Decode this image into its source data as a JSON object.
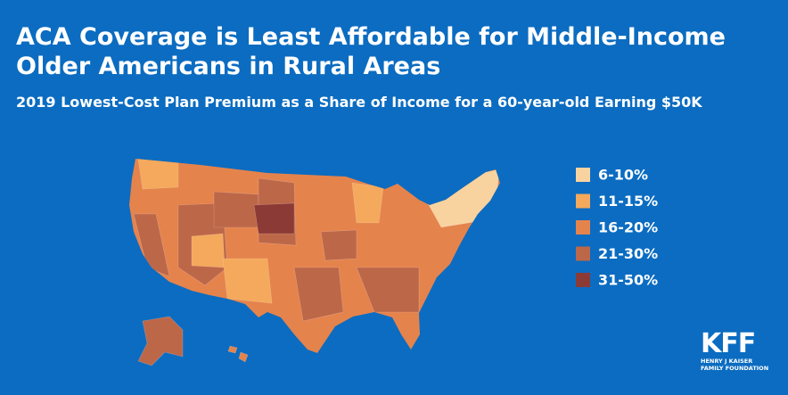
{
  "header": {
    "title_lines": [
      "ACA Coverage is Least Affordable for Middle-Income",
      "Older Americans in Rural Areas"
    ],
    "subtitle": "2019 Lowest-Cost Plan Premium as a Share of Income for a 60-year-old Earning $50K"
  },
  "legend": [
    {
      "label": "6-10%",
      "color": "#f8d3a0"
    },
    {
      "label": "11-15%",
      "color": "#f4a95c"
    },
    {
      "label": "16-20%",
      "color": "#e5834c"
    },
    {
      "label": "21-30%",
      "color": "#bd6749"
    },
    {
      "label": "31-50%",
      "color": "#8c3a35"
    }
  ],
  "logo": {
    "mark": "KFF",
    "line1": "HENRY J KAISER",
    "line2": "FAMILY FOUNDATION"
  }
}
